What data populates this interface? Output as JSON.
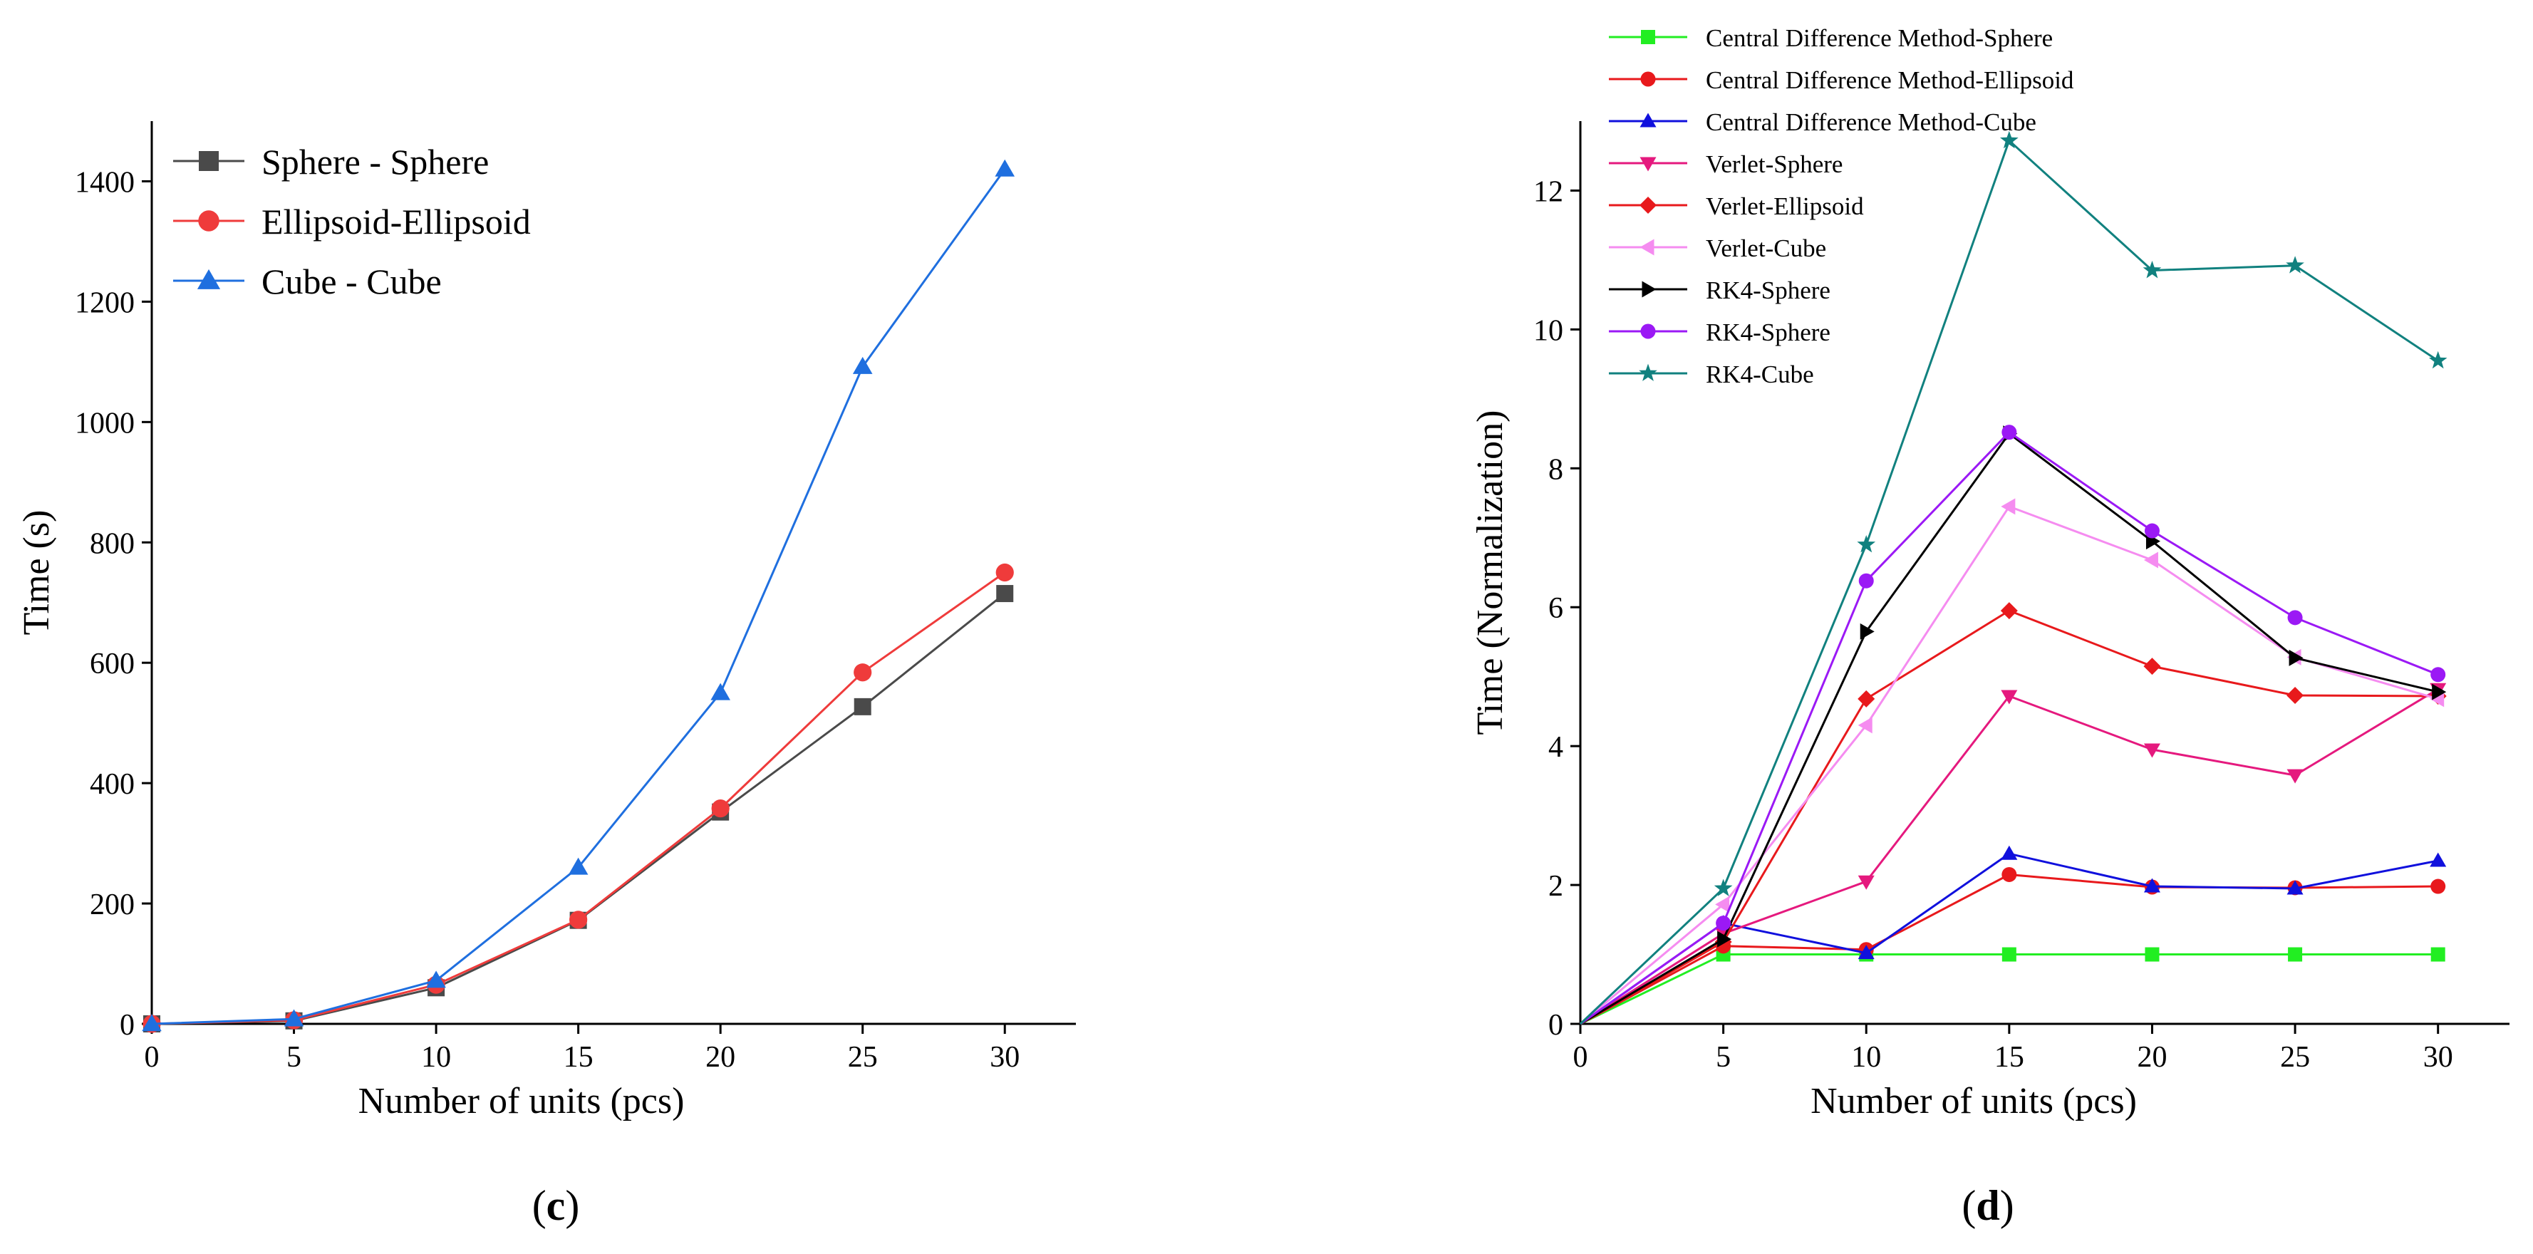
{
  "chart_data": [
    {
      "type": "line",
      "xlabel": "Number of units (pcs)",
      "ylabel": "Time (s)",
      "caption": "c",
      "xlim": [
        0,
        32.5
      ],
      "ylim": [
        0,
        1500
      ],
      "x_ticks": [
        0,
        5,
        10,
        15,
        20,
        25,
        30
      ],
      "y_ticks": [
        0,
        200,
        400,
        600,
        800,
        1000,
        1200,
        1400
      ],
      "grid": false,
      "legend_position": "top-left",
      "x": [
        0,
        5,
        10,
        15,
        20,
        25,
        30
      ],
      "series": [
        {
          "name": "Sphere - Sphere",
          "color": "#4a4a4a",
          "marker": "square",
          "values": [
            0,
            5,
            60,
            172,
            352,
            527,
            715
          ]
        },
        {
          "name": "Ellipsoid-Ellipsoid",
          "color": "#ef3b3b",
          "marker": "circle",
          "values": [
            0,
            6,
            65,
            173,
            358,
            584,
            750
          ]
        },
        {
          "name": "Cube - Cube",
          "color": "#1f6fdf",
          "marker": "triangle-up",
          "values": [
            0,
            8,
            72,
            260,
            550,
            1092,
            1420
          ]
        }
      ]
    },
    {
      "type": "line",
      "xlabel": "Number of units (pcs)",
      "ylabel": "Time (Normalization)",
      "caption": "d",
      "xlim": [
        0,
        32.5
      ],
      "ylim": [
        0,
        13
      ],
      "x_ticks": [
        0,
        5,
        10,
        15,
        20,
        25,
        30
      ],
      "y_ticks": [
        0,
        2,
        4,
        6,
        8,
        10,
        12
      ],
      "grid": false,
      "legend_position": "top-left",
      "x": [
        0,
        5,
        10,
        15,
        20,
        25,
        30
      ],
      "series": [
        {
          "name": "Central Difference Method-Sphere",
          "color": "#22ee22",
          "marker": "square",
          "values": [
            0,
            1.0,
            1.0,
            1.0,
            1.0,
            1.0,
            1.0
          ]
        },
        {
          "name": "Central Difference Method-Ellipsoid",
          "color": "#e8191c",
          "marker": "circle",
          "values": [
            0,
            1.12,
            1.07,
            2.15,
            1.97,
            1.96,
            1.98
          ]
        },
        {
          "name": "Central Difference Method-Cube",
          "color": "#1010dd",
          "marker": "triangle-up",
          "values": [
            0,
            1.45,
            1.02,
            2.45,
            1.98,
            1.95,
            2.35
          ]
        },
        {
          "name": "Verlet-Sphere",
          "color": "#e5197e",
          "marker": "triangle-down",
          "values": [
            0,
            1.3,
            2.05,
            4.72,
            3.95,
            3.58,
            4.82
          ]
        },
        {
          "name": "Verlet-Ellipsoid",
          "color": "#e8191c",
          "marker": "diamond",
          "values": [
            0,
            1.18,
            4.68,
            5.95,
            5.15,
            4.73,
            4.72
          ]
        },
        {
          "name": "Verlet-Cube",
          "color": "#f58cf0",
          "marker": "triangle-left",
          "values": [
            0,
            1.72,
            4.3,
            7.45,
            6.68,
            5.28,
            4.68
          ]
        },
        {
          "name": "RK4-Sphere",
          "color": "#000000",
          "marker": "triangle-right",
          "values": [
            0,
            1.22,
            5.65,
            8.5,
            6.95,
            5.27,
            4.78
          ]
        },
        {
          "name": "RK4-Sphere",
          "color": "#9b19f5",
          "marker": "circle",
          "values": [
            0,
            1.45,
            6.38,
            8.52,
            7.1,
            5.85,
            5.03
          ]
        },
        {
          "name": "RK4-Cube",
          "color": "#11817f",
          "marker": "star",
          "values": [
            0,
            1.95,
            6.9,
            12.72,
            10.85,
            10.92,
            9.55
          ]
        }
      ]
    }
  ]
}
